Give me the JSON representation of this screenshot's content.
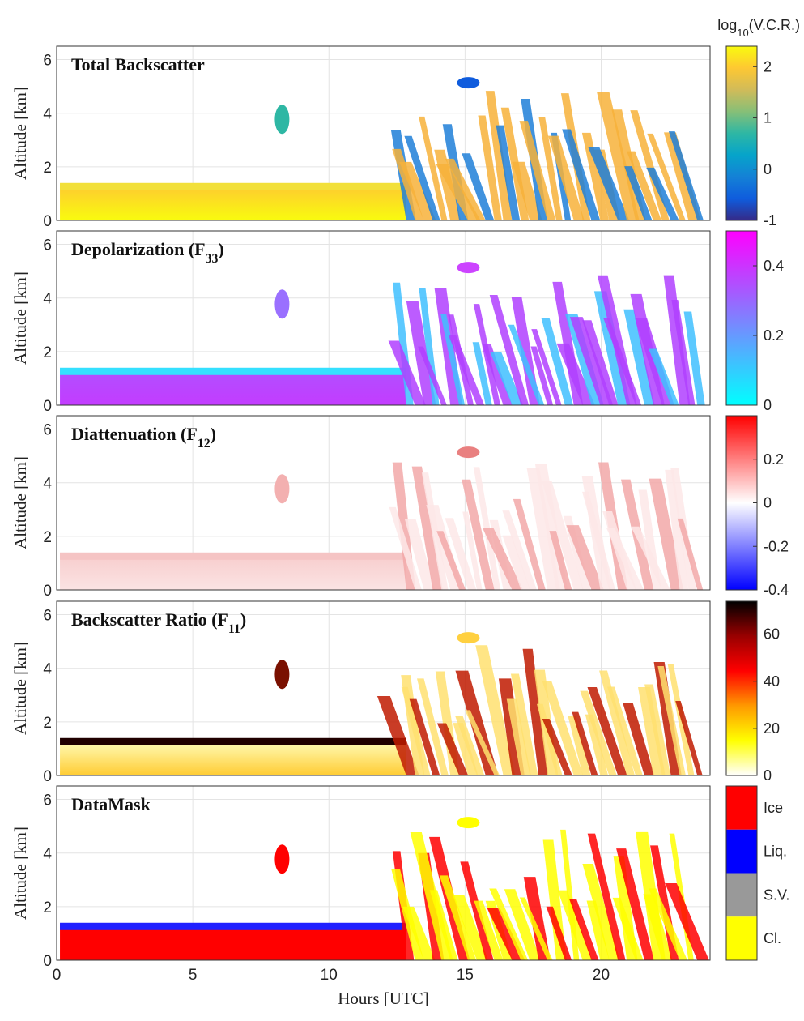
{
  "chart_data": [
    {
      "type": "heatmap",
      "title": {
        "main": "Total Backscatter"
      },
      "ylabel": "Altitude [km]",
      "xlim": [
        0,
        24
      ],
      "xticks": [
        0,
        5,
        10,
        15,
        20
      ],
      "ylim": [
        0,
        6.5
      ],
      "yticks": [
        0,
        2,
        4,
        6
      ],
      "grid": true,
      "colorbar": {
        "label": {
          "main": "log",
          "sub": "10",
          "end": "(V.C.R.)"
        },
        "lim": [
          -1,
          2.4
        ],
        "ticks": [
          -1,
          0,
          1,
          2
        ],
        "colors": [
          "#352a87",
          "#0f5cdd",
          "#1481d6",
          "#06a4ca",
          "#2eb7a4",
          "#87bf77",
          "#d1bb59",
          "#fec832",
          "#f9fb0e"
        ]
      }
    },
    {
      "type": "heatmap",
      "title": {
        "main": "Depolarization (F",
        "sub": "33",
        "end": ")"
      },
      "ylabel": "Altitude [km]",
      "xlim": [
        0,
        24
      ],
      "xticks": [
        0,
        5,
        10,
        15,
        20
      ],
      "ylim": [
        0,
        6.5
      ],
      "yticks": [
        0,
        2,
        4,
        6
      ],
      "grid": true,
      "colorbar": {
        "lim": [
          0,
          0.5
        ],
        "ticks": [
          0,
          0.2,
          0.4
        ],
        "colors": [
          "#00ffff",
          "#8080ff",
          "#ff00ff"
        ]
      }
    },
    {
      "type": "heatmap",
      "title": {
        "main": "Diattenuation (F",
        "sub": "12",
        "end": ")"
      },
      "ylabel": "Altitude [km]",
      "xlim": [
        0,
        24
      ],
      "xticks": [
        0,
        5,
        10,
        15,
        20
      ],
      "ylim": [
        0,
        6.5
      ],
      "yticks": [
        0,
        2,
        4,
        6
      ],
      "grid": true,
      "colorbar": {
        "lim": [
          -0.4,
          0.4
        ],
        "ticks": [
          -0.4,
          -0.2,
          0,
          0.2
        ],
        "colors": [
          "#0000ff",
          "#ffffff",
          "#ff0000"
        ]
      }
    },
    {
      "type": "heatmap",
      "title": {
        "main": "Backscatter Ratio (F",
        "sub": "11",
        "end": ")"
      },
      "ylabel": "Altitude [km]",
      "xlim": [
        0,
        24
      ],
      "xticks": [
        0,
        5,
        10,
        15,
        20
      ],
      "ylim": [
        0,
        6.5
      ],
      "yticks": [
        0,
        2,
        4,
        6
      ],
      "grid": true,
      "colorbar": {
        "lim": [
          0,
          74
        ],
        "ticks": [
          0,
          20,
          40,
          60
        ],
        "colors": [
          "#ffffff",
          "#ffff00",
          "#ff9900",
          "#ff0000",
          "#990000",
          "#000000"
        ]
      }
    },
    {
      "type": "mask",
      "title": {
        "main": "DataMask"
      },
      "ylabel": "Altitude [km]",
      "xlabel": "Hours [UTC]",
      "xlim": [
        0,
        24
      ],
      "xticks": [
        0,
        5,
        10,
        15,
        20
      ],
      "ylim": [
        0,
        6.5
      ],
      "yticks": [
        0,
        2,
        4,
        6
      ],
      "grid": true,
      "colorbar": {
        "categories": [
          "Ice",
          "Liq.",
          "S.V.",
          "Cl."
        ],
        "colors": [
          "#ff0000",
          "#0000ff",
          "#999999",
          "#ffff00"
        ]
      }
    }
  ]
}
